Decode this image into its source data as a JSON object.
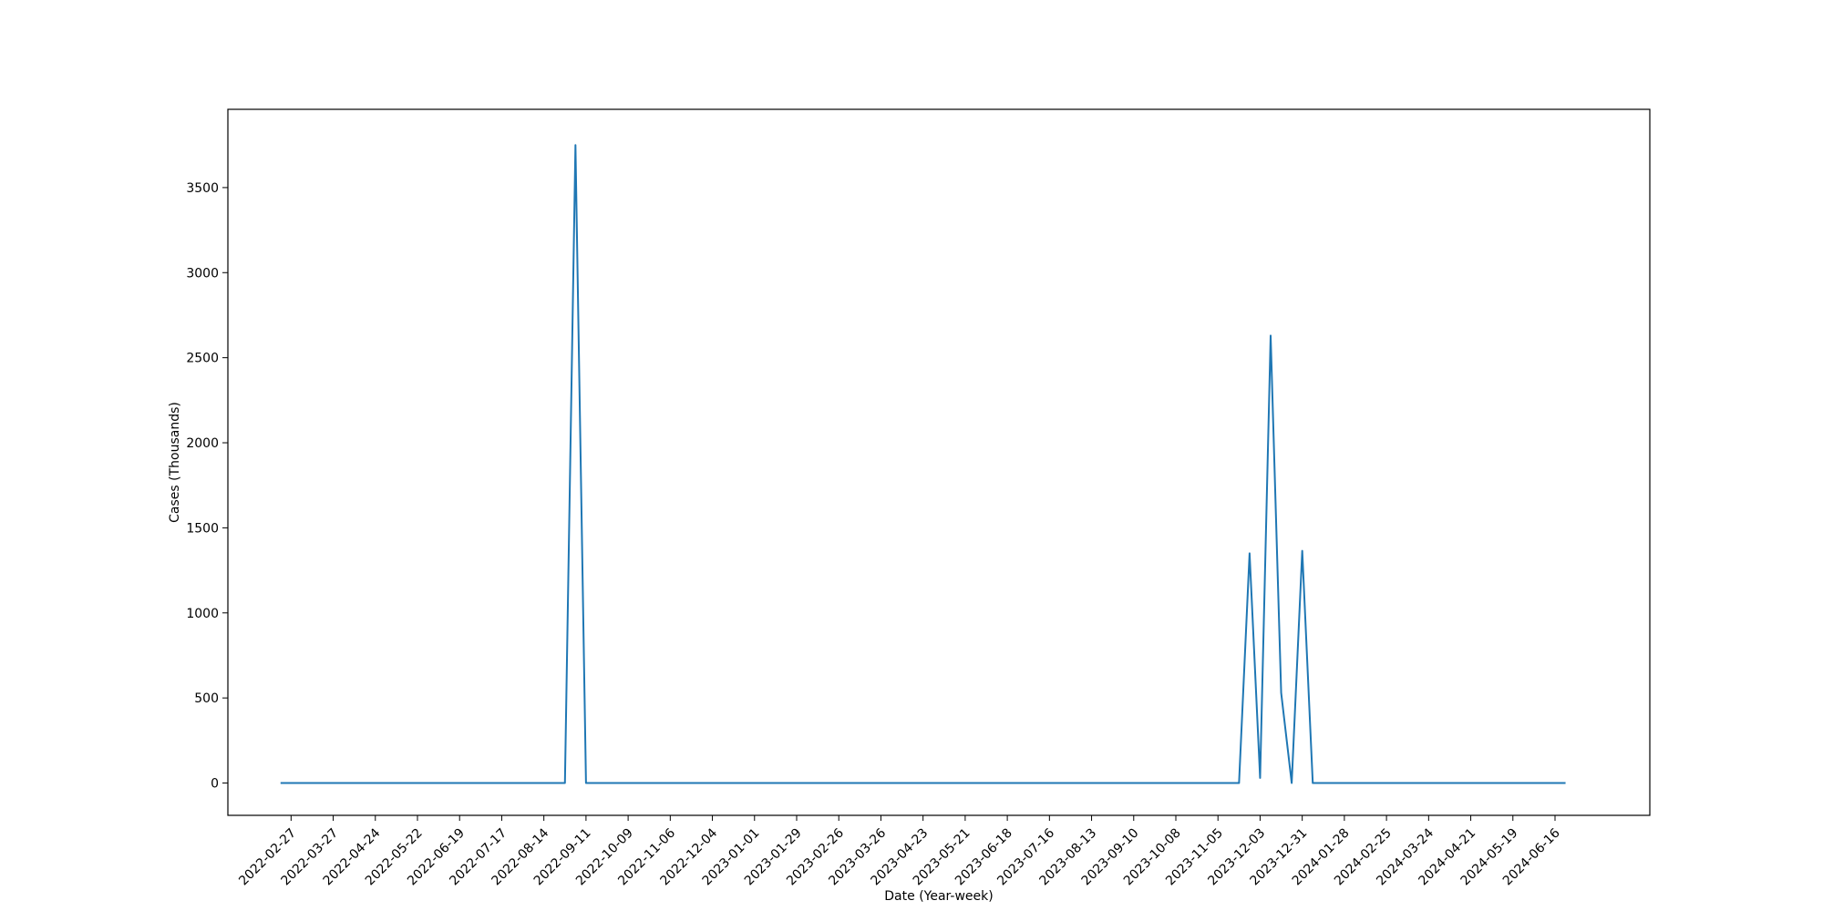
{
  "chart_data": {
    "type": "line",
    "title": "",
    "xlabel": "Date (Year-week)",
    "ylabel": "Cases (Thousands)",
    "ylim": [
      -190,
      3960
    ],
    "yticks": [
      0,
      500,
      1000,
      1500,
      2000,
      2500,
      3000,
      3500
    ],
    "ytick_labels": [
      "0",
      "500",
      "1000",
      "1500",
      "2000",
      "2500",
      "3000",
      "3500"
    ],
    "xlim": [
      -6,
      129
    ],
    "xtick_positions": [
      0,
      4,
      8,
      12,
      16,
      20,
      24,
      28,
      32,
      36,
      40,
      44,
      48,
      52,
      56,
      60,
      64,
      68,
      72,
      76,
      80,
      84,
      88,
      92,
      96,
      100,
      104,
      108,
      112,
      116,
      120
    ],
    "xtick_labels": [
      "2022-02-27",
      "2022-03-27",
      "2022-04-24",
      "2022-05-22",
      "2022-06-19",
      "2022-07-17",
      "2022-08-14",
      "2022-09-11",
      "2022-10-09",
      "2022-11-06",
      "2022-12-04",
      "2023-01-01",
      "2023-01-29",
      "2023-02-26",
      "2023-03-26",
      "2023-04-23",
      "2023-05-21",
      "2023-06-18",
      "2023-07-16",
      "2023-08-13",
      "2023-09-10",
      "2023-10-08",
      "2023-11-05",
      "2023-12-03",
      "2023-12-31",
      "2024-01-28",
      "2024-02-25",
      "2024-03-24",
      "2024-04-21",
      "2024-05-19",
      "2024-06-16"
    ],
    "series": [
      {
        "name": "Cases",
        "color": "#1f77b4",
        "points": [
          {
            "x": -1,
            "y": 0
          },
          {
            "x": 26,
            "y": 0
          },
          {
            "x": 27,
            "y": 3750
          },
          {
            "x": 28,
            "y": 0
          },
          {
            "x": 90,
            "y": 0
          },
          {
            "x": 91,
            "y": 1350
          },
          {
            "x": 92,
            "y": 30
          },
          {
            "x": 93,
            "y": 2630
          },
          {
            "x": 94,
            "y": 530
          },
          {
            "x": 95,
            "y": 0
          },
          {
            "x": 96,
            "y": 1365
          },
          {
            "x": 97,
            "y": 0
          },
          {
            "x": 121,
            "y": 0
          }
        ]
      }
    ]
  }
}
